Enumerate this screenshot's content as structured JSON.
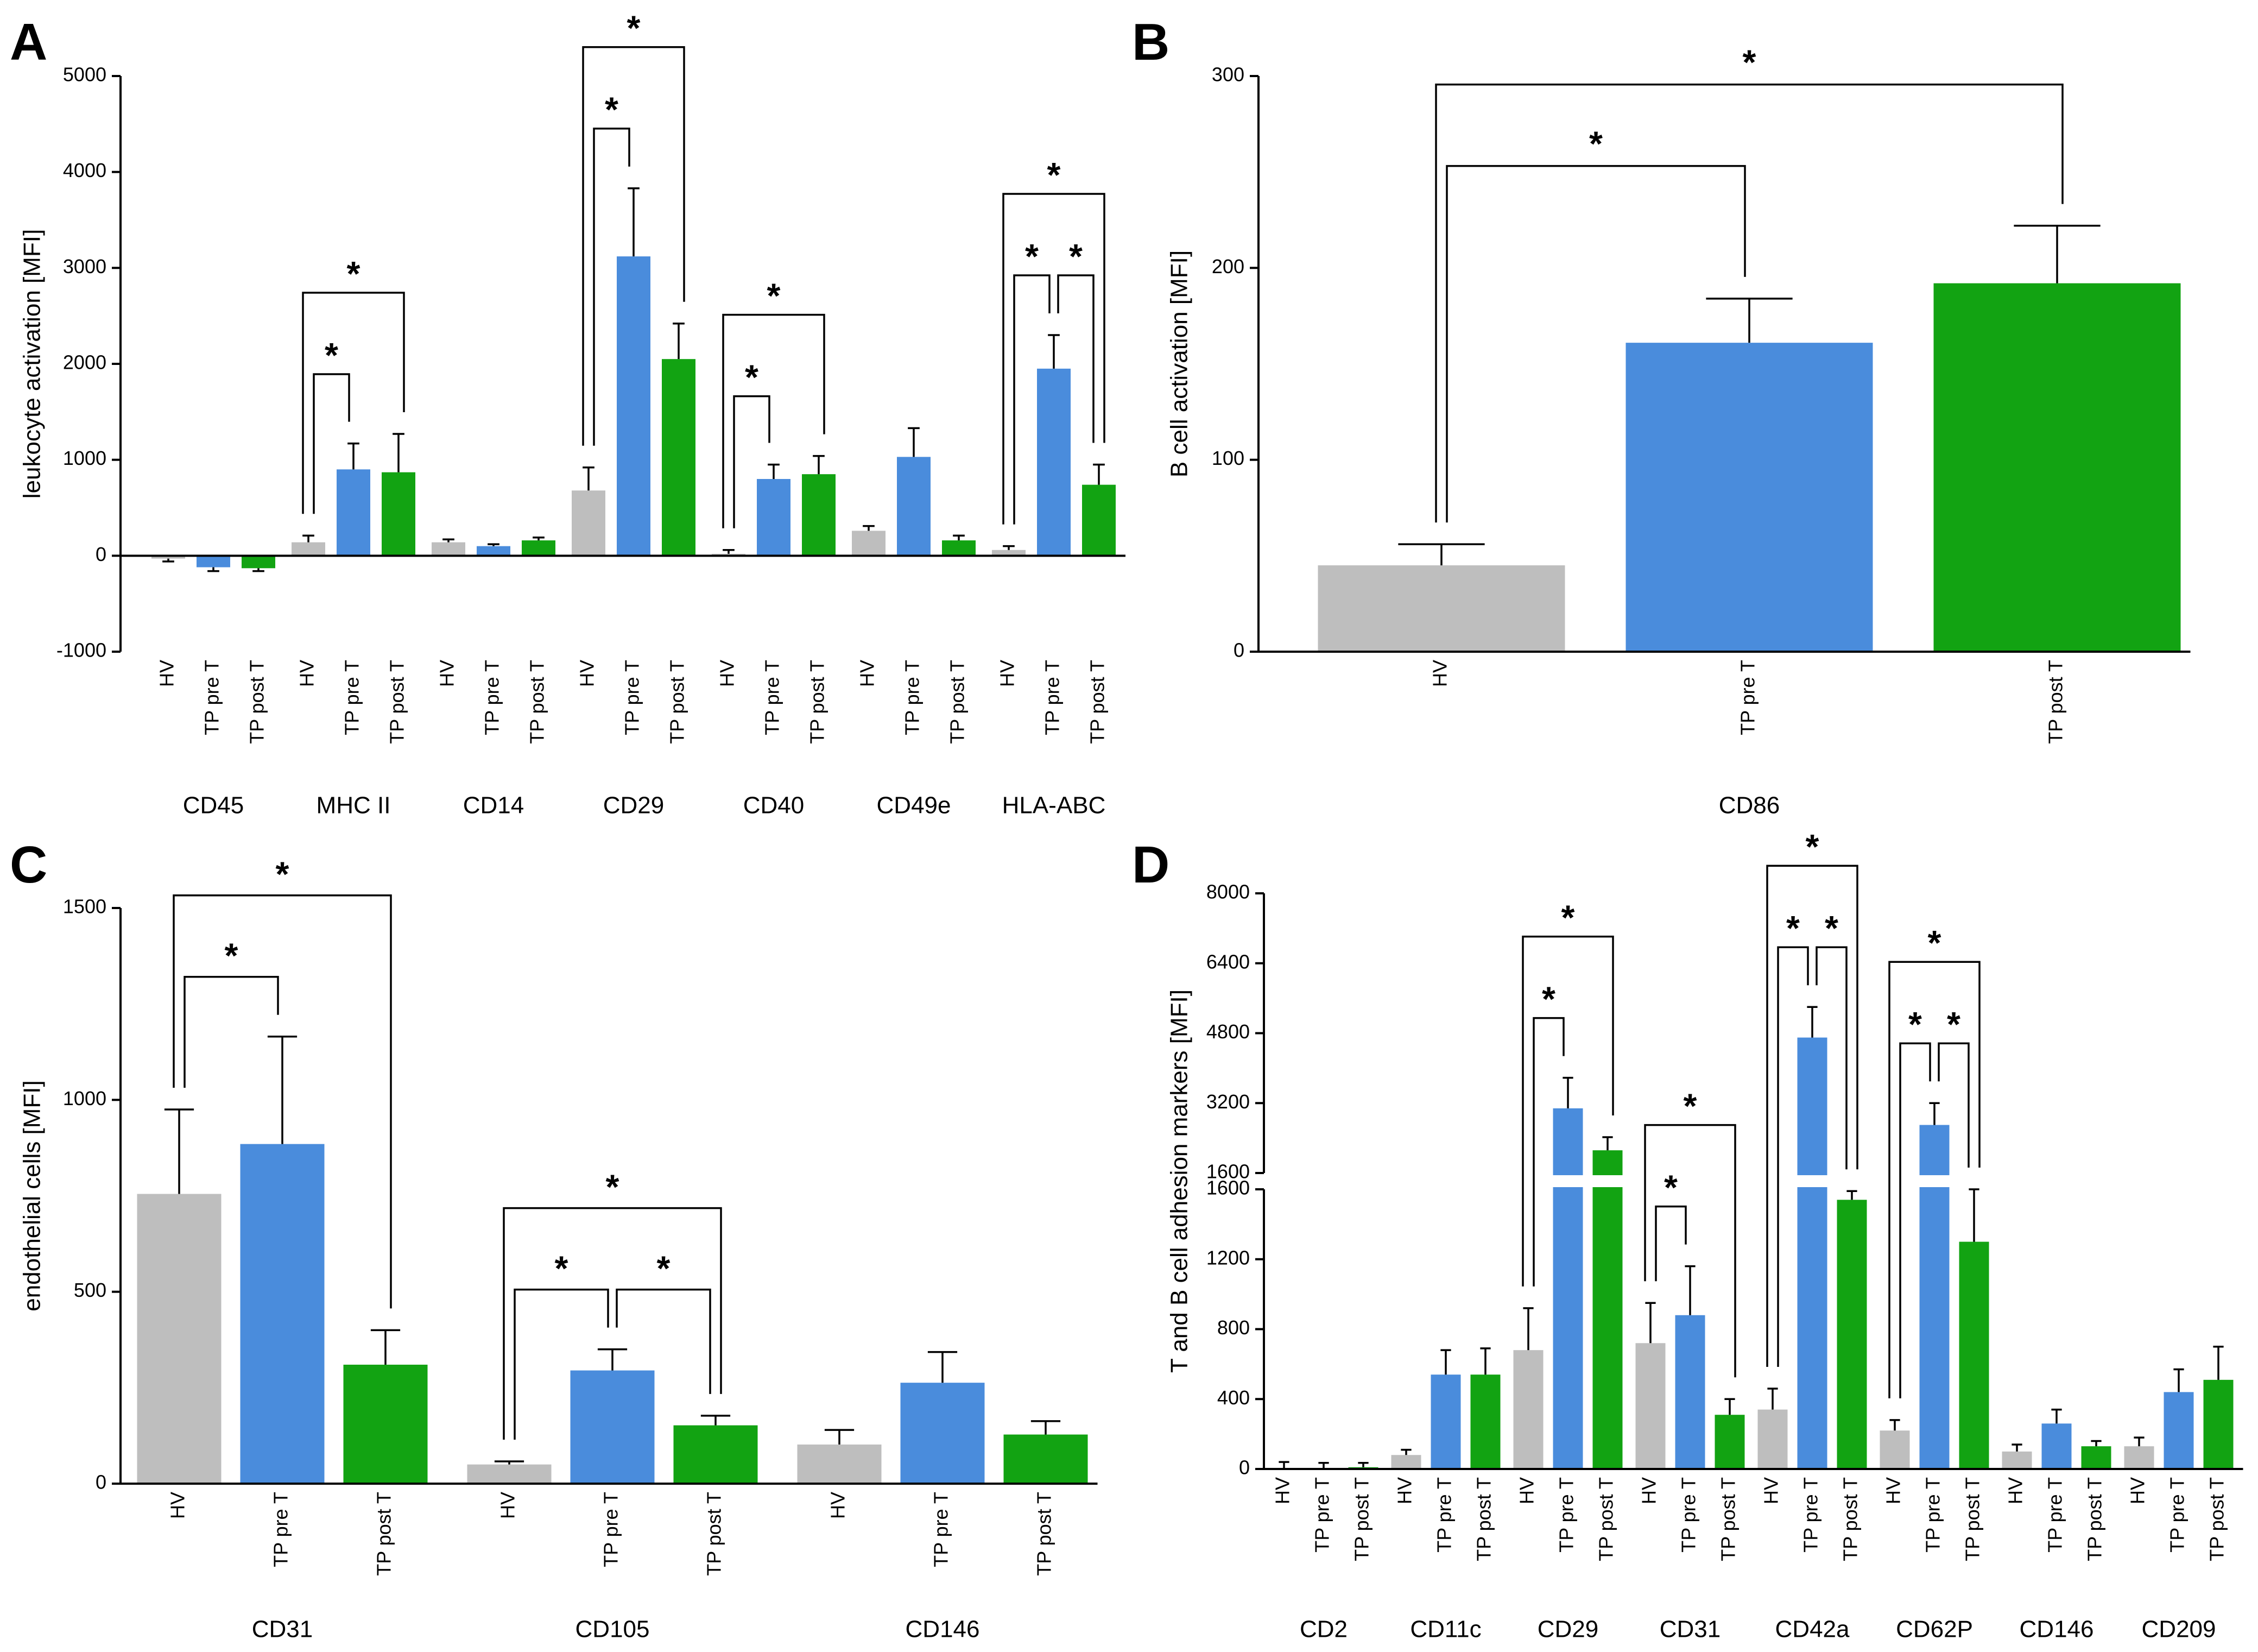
{
  "colors": {
    "hv": "#bebebe",
    "pre": "#4a8cdc",
    "post": "#12a312",
    "axis": "#000000"
  },
  "chart_data": [
    {
      "panel": "A",
      "type": "bar",
      "ylabel": "leukocyte activation [MFI]",
      "ylim": [
        -1000,
        5000
      ],
      "yticks": [
        -1000,
        0,
        1000,
        2000,
        3000,
        4000,
        5000
      ],
      "ytick_labels": [
        "-1000",
        "0",
        "1000",
        "2000",
        "3000",
        "4000",
        "5000"
      ],
      "series_names": [
        "HV",
        "TP pre T",
        "TP post T"
      ],
      "groups": [
        {
          "label": "CD45",
          "values": [
            -30,
            -120,
            -130
          ],
          "errors": [
            30,
            40,
            30
          ]
        },
        {
          "label": "MHC II",
          "values": [
            140,
            900,
            870
          ],
          "errors": [
            70,
            270,
            400
          ]
        },
        {
          "label": "CD14",
          "values": [
            140,
            100,
            160
          ],
          "errors": [
            30,
            20,
            30
          ]
        },
        {
          "label": "CD29",
          "values": [
            680,
            3120,
            2050
          ],
          "errors": [
            240,
            710,
            370
          ]
        },
        {
          "label": "CD40",
          "values": [
            20,
            800,
            850
          ],
          "errors": [
            40,
            150,
            190
          ]
        },
        {
          "label": "CD49e",
          "values": [
            260,
            1030,
            160
          ],
          "errors": [
            50,
            300,
            50
          ]
        },
        {
          "label": "HLA-ABC",
          "values": [
            60,
            1950,
            740
          ],
          "errors": [
            40,
            350,
            210
          ]
        }
      ],
      "significance": [
        {
          "group": 1,
          "from": 0,
          "to": 1,
          "level": 1,
          "text": "*"
        },
        {
          "group": 1,
          "from": 0,
          "to": 2,
          "level": 2,
          "text": "*"
        },
        {
          "group": 3,
          "from": 0,
          "to": 1,
          "level": 1,
          "text": "*"
        },
        {
          "group": 3,
          "from": 0,
          "to": 2,
          "level": 2,
          "text": "*"
        },
        {
          "group": 4,
          "from": 0,
          "to": 1,
          "level": 1,
          "text": "*"
        },
        {
          "group": 4,
          "from": 0,
          "to": 2,
          "level": 2,
          "text": "*"
        },
        {
          "group": 6,
          "from": 0,
          "to": 1,
          "level": 1,
          "text": "*"
        },
        {
          "group": 6,
          "from": 1,
          "to": 2,
          "level": 1,
          "text": "*"
        },
        {
          "group": 6,
          "from": 0,
          "to": 2,
          "level": 2,
          "text": "*"
        }
      ]
    },
    {
      "panel": "B",
      "type": "bar",
      "ylabel": "B cell activation [MFI]",
      "ylim": [
        0,
        300
      ],
      "yticks": [
        0,
        100,
        200,
        300
      ],
      "ytick_labels": [
        "0",
        "100",
        "200",
        "300"
      ],
      "series_names": [
        "HV",
        "TP pre T",
        "TP post T"
      ],
      "groups": [
        {
          "label": "CD86",
          "values": [
            45,
            161,
            192
          ],
          "errors": [
            11,
            23,
            30
          ]
        }
      ],
      "significance": [
        {
          "group": 0,
          "from": 0,
          "to": 1,
          "level": 1,
          "text": "*"
        },
        {
          "group": 0,
          "from": 0,
          "to": 2,
          "level": 2,
          "text": "*"
        }
      ]
    },
    {
      "panel": "C",
      "type": "bar",
      "ylabel": "endothelial cells [MFI]",
      "ylim": [
        0,
        1500
      ],
      "yticks": [
        0,
        500,
        1000,
        1500
      ],
      "ytick_labels": [
        "0",
        "500",
        "1000",
        "1500"
      ],
      "series_names": [
        "HV",
        "TP pre T",
        "TP post T"
      ],
      "groups": [
        {
          "label": "CD31",
          "values": [
            755,
            885,
            310
          ],
          "errors": [
            220,
            280,
            90
          ]
        },
        {
          "label": "CD105",
          "values": [
            50,
            295,
            152
          ],
          "errors": [
            8,
            55,
            25
          ]
        },
        {
          "label": "CD146",
          "values": [
            102,
            263,
            128
          ],
          "errors": [
            38,
            80,
            35
          ]
        }
      ],
      "significance": [
        {
          "group": 0,
          "from": 0,
          "to": 1,
          "level": 1,
          "text": "*"
        },
        {
          "group": 0,
          "from": 0,
          "to": 2,
          "level": 2,
          "text": "*"
        },
        {
          "group": 1,
          "from": 0,
          "to": 1,
          "level": 1,
          "text": "*"
        },
        {
          "group": 1,
          "from": 1,
          "to": 2,
          "level": 1,
          "text": "*"
        },
        {
          "group": 1,
          "from": 0,
          "to": 2,
          "level": 2,
          "text": "*"
        }
      ]
    },
    {
      "panel": "D",
      "type": "bar",
      "ylabel": "T and B cell adhesion markers [MFI]",
      "y_axis_break": {
        "lower": [
          0,
          1600
        ],
        "upper": [
          1600,
          8000
        ]
      },
      "yticks_lower": [
        0,
        400,
        800,
        1200,
        1600
      ],
      "yticks_upper": [
        1600,
        3200,
        4800,
        6400,
        8000
      ],
      "ytick_labels_lower": [
        "0",
        "400",
        "800",
        "1200",
        "1600"
      ],
      "ytick_labels_upper": [
        "1600",
        "3200",
        "4800",
        "6400",
        "8000"
      ],
      "series_names": [
        "HV",
        "TP pre T",
        "TP post T"
      ],
      "groups": [
        {
          "label": "CD2",
          "values": [
            5,
            5,
            10
          ],
          "errors": [
            35,
            30,
            25
          ]
        },
        {
          "label": "CD11c",
          "values": [
            80,
            540,
            540
          ],
          "errors": [
            30,
            140,
            150
          ]
        },
        {
          "label": "CD29",
          "values": [
            680,
            3080,
            2120
          ],
          "errors": [
            240,
            700,
            300
          ]
        },
        {
          "label": "CD31",
          "values": [
            720,
            880,
            310
          ],
          "errors": [
            230,
            280,
            90
          ]
        },
        {
          "label": "CD42a",
          "values": [
            340,
            4700,
            1540
          ],
          "errors": [
            120,
            700,
            50
          ]
        },
        {
          "label": "CD62P",
          "values": [
            220,
            2700,
            1300
          ],
          "errors": [
            60,
            500,
            300
          ]
        },
        {
          "label": "CD146",
          "values": [
            100,
            260,
            130
          ],
          "errors": [
            40,
            80,
            30
          ]
        },
        {
          "label": "CD209",
          "values": [
            130,
            440,
            510
          ],
          "errors": [
            50,
            130,
            190
          ]
        }
      ],
      "significance": [
        {
          "group": 2,
          "from": 0,
          "to": 1,
          "level": 1,
          "text": "*"
        },
        {
          "group": 2,
          "from": 0,
          "to": 2,
          "level": 2,
          "text": "*"
        },
        {
          "group": 3,
          "from": 0,
          "to": 1,
          "level": 1,
          "text": "*"
        },
        {
          "group": 3,
          "from": 0,
          "to": 2,
          "level": 2,
          "text": "*"
        },
        {
          "group": 4,
          "from": 0,
          "to": 1,
          "level": 1,
          "text": "*"
        },
        {
          "group": 4,
          "from": 1,
          "to": 2,
          "level": 1,
          "text": "*"
        },
        {
          "group": 4,
          "from": 0,
          "to": 2,
          "level": 2,
          "text": "*"
        },
        {
          "group": 5,
          "from": 0,
          "to": 1,
          "level": 1,
          "text": "*"
        },
        {
          "group": 5,
          "from": 1,
          "to": 2,
          "level": 1,
          "text": "*"
        },
        {
          "group": 5,
          "from": 0,
          "to": 2,
          "level": 2,
          "text": "*"
        }
      ]
    }
  ]
}
